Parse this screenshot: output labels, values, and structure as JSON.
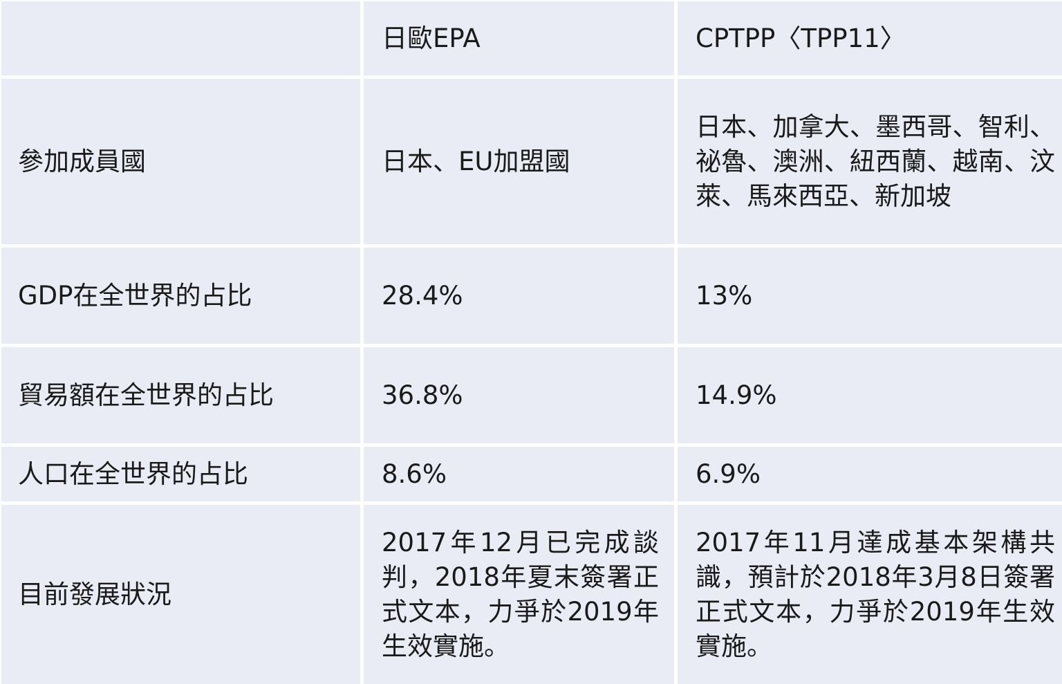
{
  "header": {
    "corner": "",
    "col_epa": "日歐EPA",
    "col_cptpp": "CPTPP〈TPP11〉"
  },
  "rows": [
    {
      "label": "參加成員國",
      "epa": "日本、EU加盟國",
      "cptpp": "日本、加拿大、墨西哥、智利、祕魯、澳洲、紐西蘭、越南、汶萊、馬來西亞、新加坡"
    },
    {
      "label": "GDP在全世界的占比",
      "epa": "28.4%",
      "cptpp": "13%"
    },
    {
      "label": "貿易額在全世界的占比",
      "epa": "36.8%",
      "cptpp": "14.9%"
    },
    {
      "label": "人口在全世界的占比",
      "epa": "8.6%",
      "cptpp": "6.9%"
    },
    {
      "label": "目前發展狀況",
      "epa": "2017年12月已完成談判，2018年夏末簽署正式文本，力爭於2019年生效實施。",
      "cptpp": "2017年11月達成基本架構共識，預計於2018年3月8日簽署正式文本，力爭於2019年生效實施。"
    }
  ],
  "colors": {
    "cell_bg": "#e9ecf4",
    "grid_line": "#ffffff",
    "text": "#1a1a1a"
  }
}
